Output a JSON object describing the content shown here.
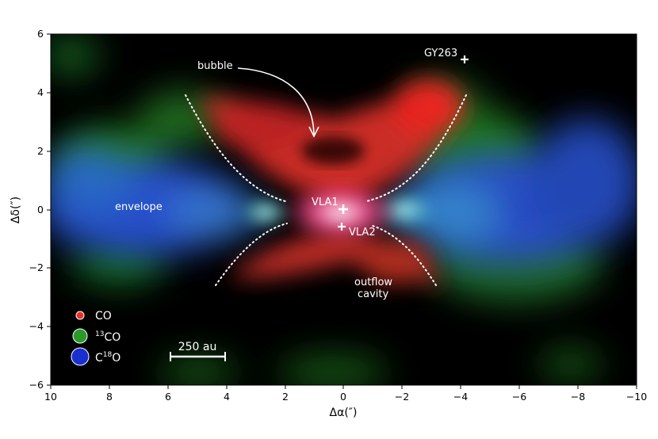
{
  "axes": {
    "x_label": "Δα(″)",
    "y_label": "Δδ(″)",
    "x_ticks": [
      "10",
      "8",
      "6",
      "4",
      "2",
      "0",
      "−2",
      "−4",
      "−6",
      "−8",
      "−10"
    ],
    "y_ticks": [
      "6",
      "4",
      "2",
      "0",
      "−2",
      "−4",
      "−6"
    ],
    "x_range": [
      10,
      -10
    ],
    "y_range": [
      -6,
      6
    ]
  },
  "annotations": {
    "bubble": "bubble",
    "envelope": "envelope",
    "vla1": "VLA1",
    "vla2": "VLA2",
    "gy263": "GY263",
    "outflow_line1": "outflow",
    "outflow_line2": "cavity"
  },
  "legend": {
    "co": "CO",
    "co13_sup": "13",
    "co13_main": "CO",
    "c18o_pre": "C",
    "c18o_sup": "18",
    "c18o_post": "O"
  },
  "scalebar": {
    "label": "250 au"
  },
  "colors": {
    "co": "#e8302a",
    "co13": "#2a9a2a",
    "c18o": "#1a2fd0",
    "background": "#000000"
  }
}
